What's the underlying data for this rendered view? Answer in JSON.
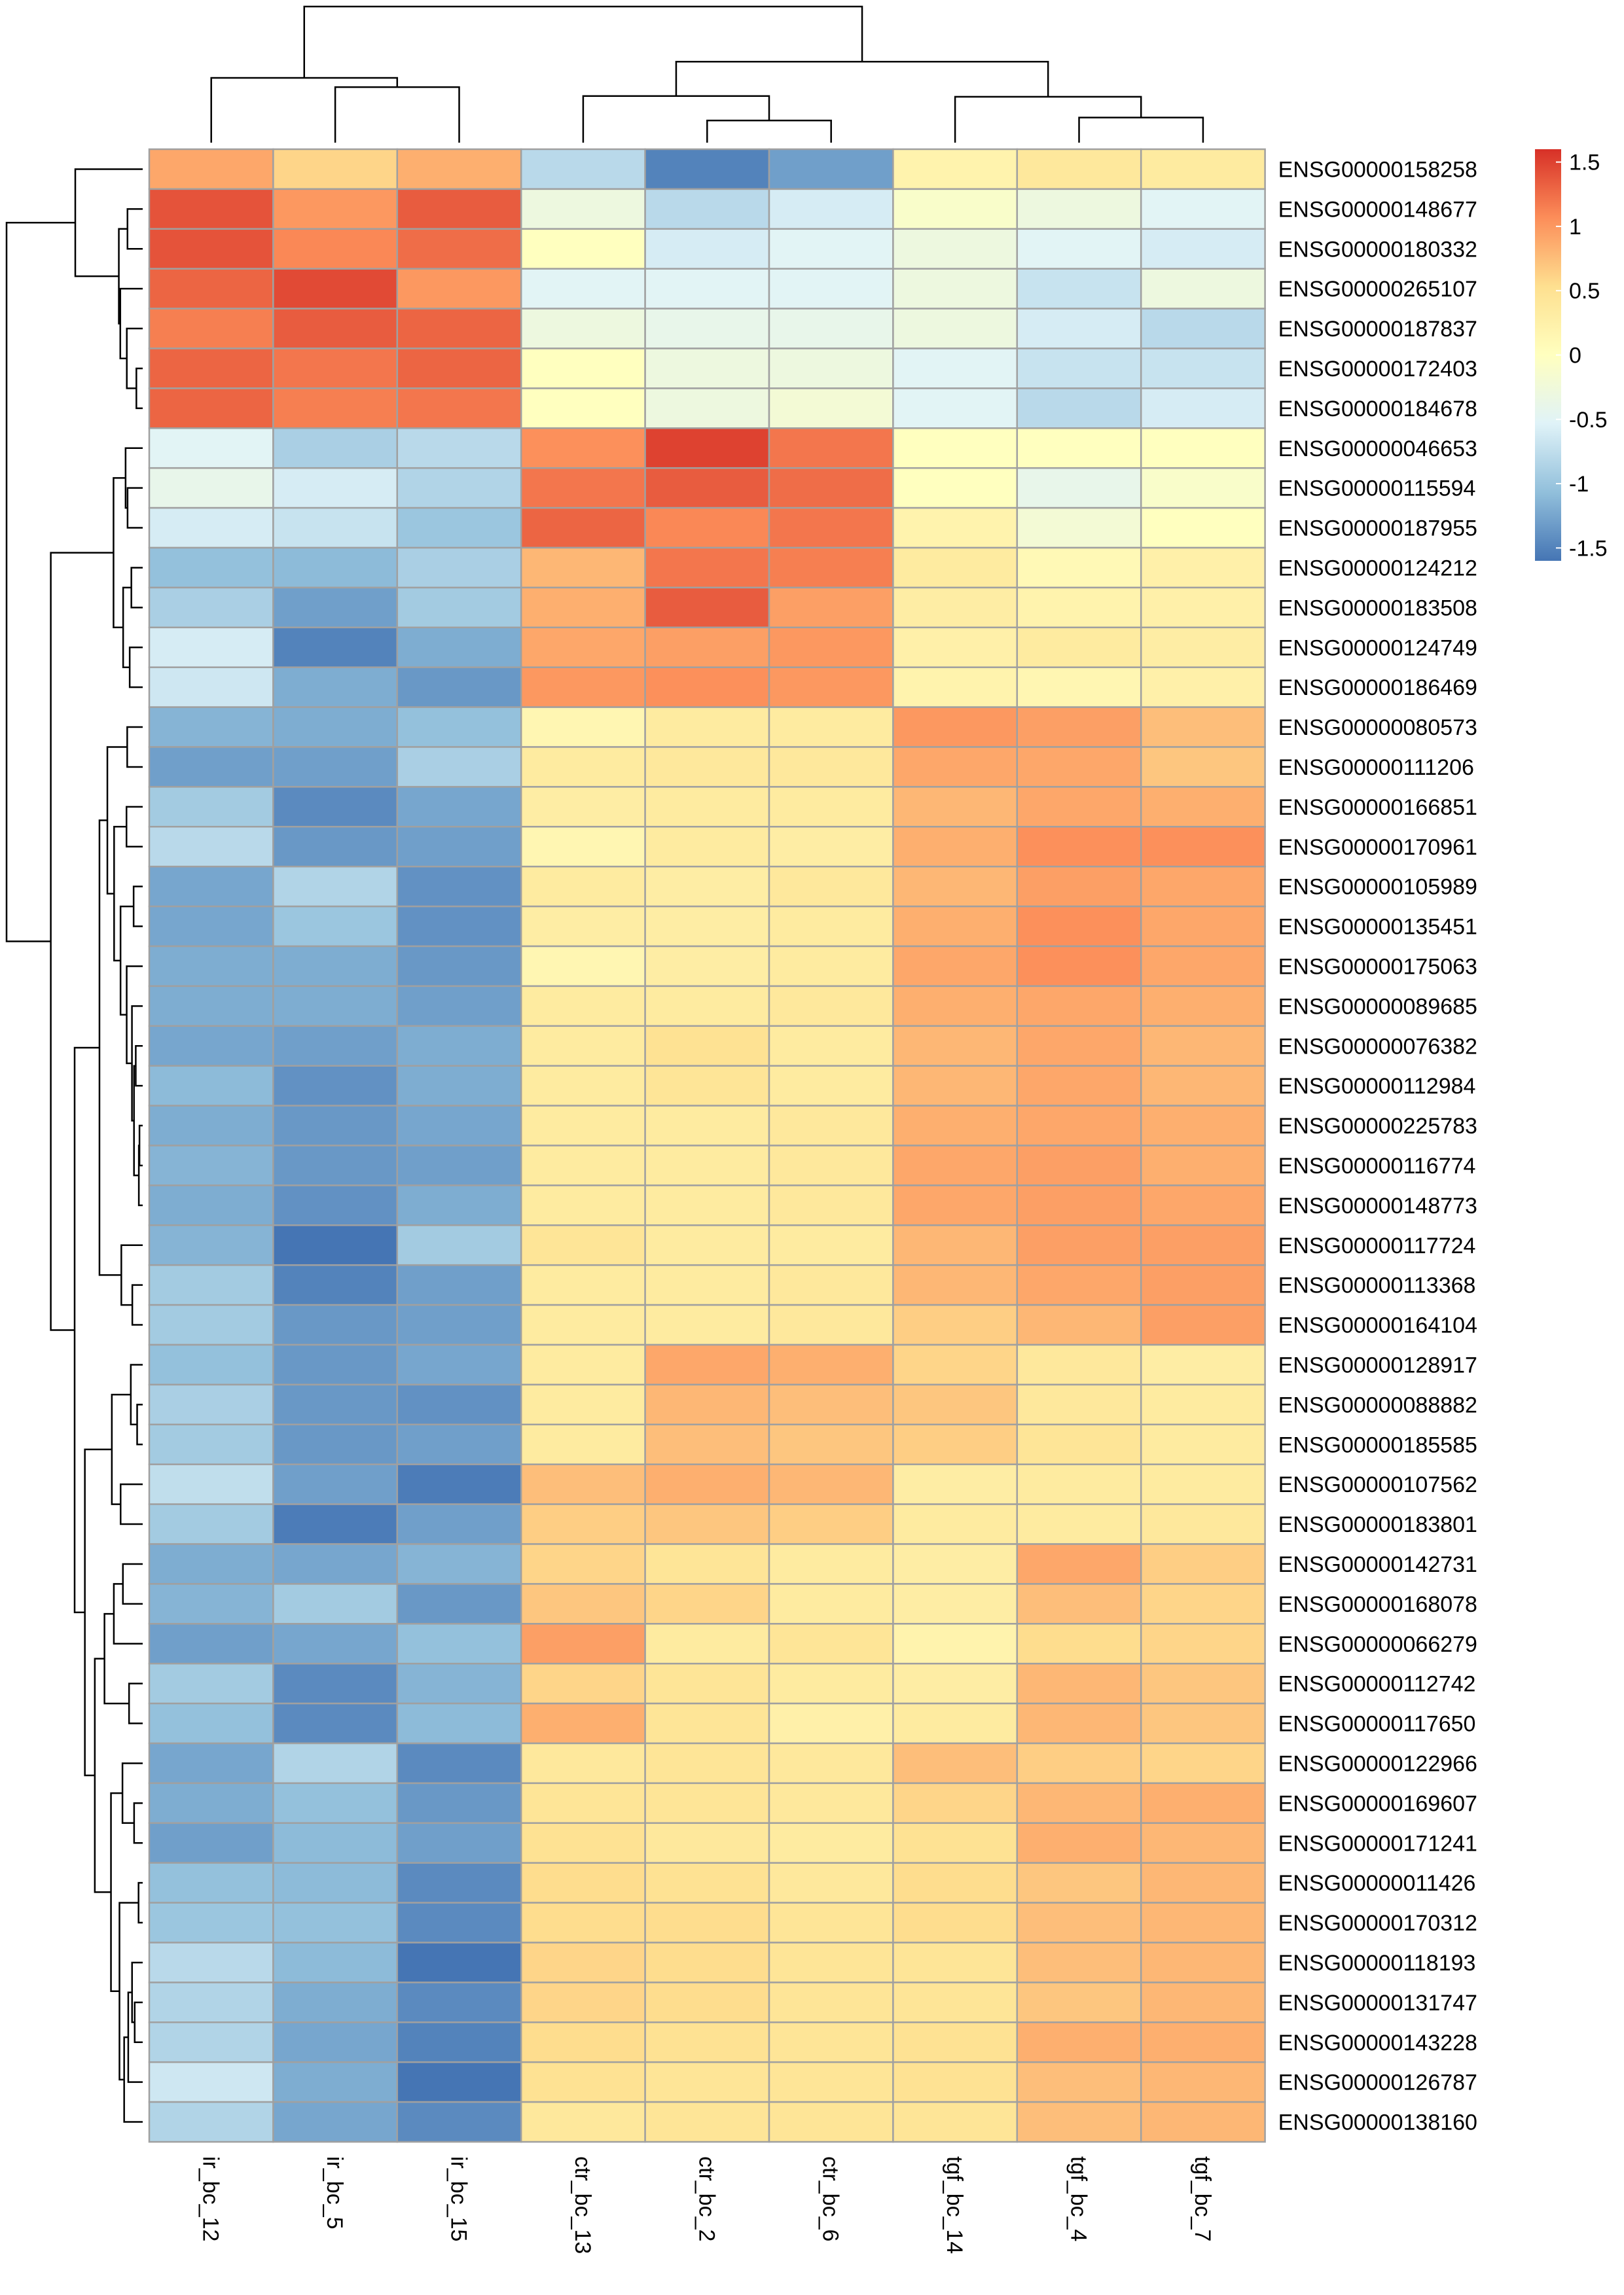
{
  "chart_data": {
    "type": "heatmap",
    "title": "",
    "columns": [
      "ir_bc_12",
      "ir_bc_5",
      "ir_bc_15",
      "ctr_bc_13",
      "ctr_bc_2",
      "ctr_bc_6",
      "tgf_bc_14",
      "tgf_bc_4",
      "tgf_bc_7"
    ],
    "rows": [
      "ENSG00000158258",
      "ENSG00000148677",
      "ENSG00000180332",
      "ENSG00000265107",
      "ENSG00000187837",
      "ENSG00000172403",
      "ENSG00000184678",
      "ENSG00000046653",
      "ENSG00000115594",
      "ENSG00000187955",
      "ENSG00000124212",
      "ENSG00000183508",
      "ENSG00000124749",
      "ENSG00000186469",
      "ENSG00000080573",
      "ENSG00000111206",
      "ENSG00000166851",
      "ENSG00000170961",
      "ENSG00000105989",
      "ENSG00000135451",
      "ENSG00000175063",
      "ENSG00000089685",
      "ENSG00000076382",
      "ENSG00000112984",
      "ENSG00000225783",
      "ENSG00000116774",
      "ENSG00000148773",
      "ENSG00000117724",
      "ENSG00000113368",
      "ENSG00000164104",
      "ENSG00000128917",
      "ENSG00000088882",
      "ENSG00000185585",
      "ENSG00000107562",
      "ENSG00000183801",
      "ENSG00000142731",
      "ENSG00000168078",
      "ENSG00000066279",
      "ENSG00000112742",
      "ENSG00000117650",
      "ENSG00000122966",
      "ENSG00000169607",
      "ENSG00000171241",
      "ENSG00000011426",
      "ENSG00000170312",
      "ENSG00000118193",
      "ENSG00000131747",
      "ENSG00000143228",
      "ENSG00000126787",
      "ENSG00000138160"
    ],
    "values": [
      [
        0.9,
        0.6,
        0.85,
        -0.8,
        -1.5,
        -1.3,
        0.2,
        0.4,
        0.35
      ],
      [
        1.4,
        1.0,
        1.35,
        -0.3,
        -0.8,
        -0.6,
        -0.1,
        -0.3,
        -0.5
      ],
      [
        1.4,
        1.1,
        1.25,
        0.0,
        -0.6,
        -0.5,
        -0.3,
        -0.5,
        -0.6
      ],
      [
        1.3,
        1.45,
        1.0,
        -0.5,
        -0.5,
        -0.5,
        -0.3,
        -0.7,
        -0.3
      ],
      [
        1.15,
        1.35,
        1.3,
        -0.3,
        -0.4,
        -0.4,
        -0.3,
        -0.6,
        -0.8
      ],
      [
        1.3,
        1.2,
        1.3,
        0.0,
        -0.3,
        -0.3,
        -0.5,
        -0.7,
        -0.7
      ],
      [
        1.3,
        1.15,
        1.2,
        0.0,
        -0.3,
        -0.2,
        -0.5,
        -0.8,
        -0.6
      ],
      [
        -0.5,
        -0.9,
        -0.8,
        1.05,
        1.5,
        1.2,
        0.0,
        0.0,
        0.0
      ],
      [
        -0.4,
        -0.6,
        -0.85,
        1.2,
        1.35,
        1.25,
        0.0,
        -0.4,
        -0.1
      ],
      [
        -0.6,
        -0.7,
        -1.0,
        1.3,
        1.1,
        1.2,
        0.2,
        -0.2,
        0.0
      ],
      [
        -1.05,
        -1.1,
        -0.9,
        0.8,
        1.2,
        1.15,
        0.35,
        0.1,
        0.25
      ],
      [
        -0.9,
        -1.3,
        -0.95,
        0.85,
        1.35,
        0.95,
        0.3,
        0.2,
        0.25
      ],
      [
        -0.6,
        -1.5,
        -1.2,
        0.9,
        0.95,
        1.0,
        0.25,
        0.35,
        0.3
      ],
      [
        -0.65,
        -1.2,
        -1.35,
        1.0,
        1.05,
        1.0,
        0.2,
        0.15,
        0.25
      ],
      [
        -1.15,
        -1.2,
        -1.05,
        0.15,
        0.35,
        0.35,
        1.0,
        0.95,
        0.75
      ],
      [
        -1.3,
        -1.3,
        -0.9,
        0.35,
        0.4,
        0.4,
        0.9,
        0.9,
        0.7
      ],
      [
        -0.95,
        -1.45,
        -1.25,
        0.3,
        0.35,
        0.35,
        0.8,
        0.9,
        0.85
      ],
      [
        -0.8,
        -1.35,
        -1.3,
        0.15,
        0.35,
        0.3,
        0.85,
        1.05,
        1.05
      ],
      [
        -1.25,
        -0.85,
        -1.4,
        0.35,
        0.3,
        0.4,
        0.8,
        0.95,
        0.9
      ],
      [
        -1.25,
        -1.0,
        -1.4,
        0.3,
        0.3,
        0.35,
        0.85,
        1.05,
        0.9
      ],
      [
        -1.2,
        -1.2,
        -1.35,
        0.15,
        0.3,
        0.35,
        0.9,
        1.05,
        0.9
      ],
      [
        -1.2,
        -1.2,
        -1.3,
        0.35,
        0.35,
        0.4,
        0.85,
        0.9,
        0.85
      ],
      [
        -1.25,
        -1.3,
        -1.2,
        0.35,
        0.5,
        0.35,
        0.8,
        0.9,
        0.8
      ],
      [
        -1.1,
        -1.4,
        -1.2,
        0.35,
        0.45,
        0.35,
        0.8,
        0.9,
        0.8
      ],
      [
        -1.2,
        -1.35,
        -1.25,
        0.35,
        0.35,
        0.4,
        0.85,
        0.9,
        0.85
      ],
      [
        -1.15,
        -1.35,
        -1.3,
        0.35,
        0.35,
        0.4,
        0.9,
        0.95,
        0.85
      ],
      [
        -1.2,
        -1.4,
        -1.2,
        0.35,
        0.35,
        0.4,
        0.9,
        0.95,
        0.9
      ],
      [
        -1.15,
        -1.6,
        -0.95,
        0.45,
        0.35,
        0.35,
        0.8,
        0.95,
        0.95
      ],
      [
        -0.95,
        -1.5,
        -1.3,
        0.35,
        0.35,
        0.4,
        0.8,
        0.9,
        0.95
      ],
      [
        -0.95,
        -1.35,
        -1.3,
        0.35,
        0.35,
        0.4,
        0.65,
        0.8,
        0.95
      ],
      [
        -1.05,
        -1.35,
        -1.25,
        0.35,
        0.9,
        0.85,
        0.6,
        0.4,
        0.3
      ],
      [
        -0.9,
        -1.35,
        -1.4,
        0.35,
        0.8,
        0.75,
        0.7,
        0.4,
        0.35
      ],
      [
        -0.95,
        -1.35,
        -1.3,
        0.35,
        0.75,
        0.7,
        0.65,
        0.45,
        0.35
      ],
      [
        -0.75,
        -1.3,
        -1.55,
        0.75,
        0.85,
        0.8,
        0.3,
        0.35,
        0.35
      ],
      [
        -0.95,
        -1.55,
        -1.3,
        0.65,
        0.7,
        0.65,
        0.35,
        0.35,
        0.4
      ],
      [
        -1.2,
        -1.25,
        -1.15,
        0.6,
        0.45,
        0.35,
        0.3,
        0.9,
        0.65
      ],
      [
        -1.15,
        -0.95,
        -1.35,
        0.7,
        0.6,
        0.35,
        0.3,
        0.75,
        0.6
      ],
      [
        -1.3,
        -1.25,
        -1.05,
        0.95,
        0.35,
        0.45,
        0.2,
        0.55,
        0.6
      ],
      [
        -0.95,
        -1.45,
        -1.15,
        0.6,
        0.45,
        0.35,
        0.3,
        0.8,
        0.7
      ],
      [
        -1.05,
        -1.45,
        -1.1,
        0.85,
        0.45,
        0.25,
        0.35,
        0.8,
        0.7
      ],
      [
        -1.25,
        -0.85,
        -1.45,
        0.4,
        0.45,
        0.4,
        0.75,
        0.65,
        0.6
      ],
      [
        -1.2,
        -1.05,
        -1.35,
        0.45,
        0.45,
        0.4,
        0.6,
        0.8,
        0.85
      ],
      [
        -1.3,
        -1.1,
        -1.3,
        0.5,
        0.4,
        0.35,
        0.5,
        0.85,
        0.8
      ],
      [
        -1.05,
        -1.1,
        -1.45,
        0.55,
        0.5,
        0.4,
        0.55,
        0.7,
        0.8
      ],
      [
        -1.0,
        -1.05,
        -1.45,
        0.55,
        0.55,
        0.45,
        0.55,
        0.75,
        0.8
      ],
      [
        -0.8,
        -1.1,
        -1.6,
        0.6,
        0.55,
        0.45,
        0.45,
        0.75,
        0.8
      ],
      [
        -0.85,
        -1.2,
        -1.45,
        0.6,
        0.55,
        0.45,
        0.45,
        0.7,
        0.8
      ],
      [
        -0.85,
        -1.25,
        -1.5,
        0.55,
        0.5,
        0.45,
        0.5,
        0.85,
        0.85
      ],
      [
        -0.65,
        -1.2,
        -1.6,
        0.5,
        0.45,
        0.45,
        0.5,
        0.75,
        0.8
      ],
      [
        -0.85,
        -1.25,
        -1.45,
        0.4,
        0.45,
        0.45,
        0.45,
        0.75,
        0.8
      ]
    ],
    "color_scale": {
      "min": -1.6,
      "max": 1.6,
      "stops": [
        {
          "value": -1.6,
          "color": "#4575B4"
        },
        {
          "value": -1.07,
          "color": "#91BFDB"
        },
        {
          "value": -0.53,
          "color": "#E0F3F8"
        },
        {
          "value": 0.0,
          "color": "#FFFFBF"
        },
        {
          "value": 0.53,
          "color": "#FEE090"
        },
        {
          "value": 1.07,
          "color": "#FC8D59"
        },
        {
          "value": 1.6,
          "color": "#D73027"
        }
      ]
    },
    "legend": {
      "ticks": [
        1.5,
        1,
        0.5,
        0,
        -0.5,
        -1,
        -1.5
      ],
      "tick_labels": [
        "1.5",
        "1",
        "0.5",
        "0",
        "-0.5",
        "-1",
        "-1.5"
      ],
      "placement": "top-right"
    },
    "cell_border_color": "#A0A0A0",
    "dendrogram_color": "#000000",
    "row_clusters": [
      [
        0,
        6
      ],
      [
        7,
        13
      ],
      [
        14,
        49
      ]
    ],
    "column_clusters": [
      [
        0,
        2
      ],
      [
        3,
        5
      ],
      [
        6,
        8
      ]
    ]
  }
}
